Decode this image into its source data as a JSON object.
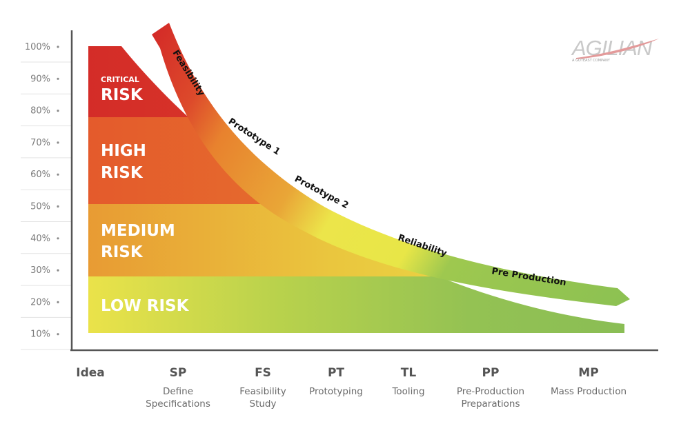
{
  "logo": {
    "name": "AGILIAN",
    "tagline": "A GOTEAST COMPANY"
  },
  "y_axis": {
    "ticks": [
      "100%",
      "90%",
      "80%",
      "70%",
      "60%",
      "50%",
      "40%",
      "30%",
      "20%",
      "10%"
    ]
  },
  "risk_zones": [
    {
      "id": "critical",
      "small_label": "CRITICAL",
      "lines": [
        "RISK"
      ],
      "color": "#d8322b"
    },
    {
      "id": "high",
      "small_label": "",
      "lines": [
        "HIGH",
        "RISK"
      ],
      "color": "#e46a2e"
    },
    {
      "id": "medium",
      "small_label": "",
      "lines": [
        "MEDIUM",
        "RISK"
      ],
      "color": "#e9b53a"
    },
    {
      "id": "low",
      "small_label": "",
      "lines": [
        "LOW RISK"
      ],
      "color": "#98c455"
    }
  ],
  "phase_arrow": {
    "labels": [
      "Feasibility",
      "Prototype 1",
      "Prototype 2",
      "Reliability",
      "Pre Production"
    ],
    "colors": [
      "#d8322b",
      "#e8822e",
      "#e9e54a",
      "#8cc152"
    ]
  },
  "stages": [
    {
      "code": "Idea",
      "name_lines": []
    },
    {
      "code": "SP",
      "name_lines": [
        "Define",
        "Specifications"
      ]
    },
    {
      "code": "FS",
      "name_lines": [
        "Feasibility",
        "Study"
      ]
    },
    {
      "code": "PT",
      "name_lines": [
        "Prototyping"
      ]
    },
    {
      "code": "TL",
      "name_lines": [
        "Tooling"
      ]
    },
    {
      "code": "PP",
      "name_lines": [
        "Pre-Production",
        "Preparations"
      ]
    },
    {
      "code": "MP",
      "name_lines": [
        "Mass Production"
      ]
    }
  ]
}
